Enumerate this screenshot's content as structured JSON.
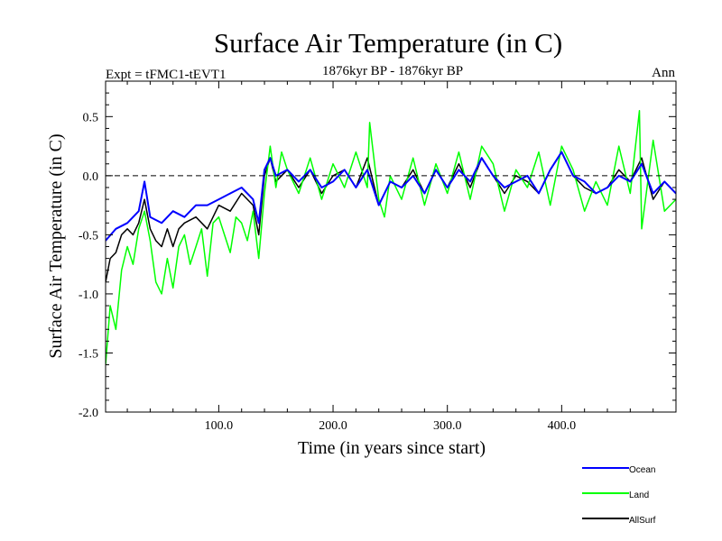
{
  "chart_data": {
    "type": "line",
    "title": "Surface Air Temperature (in C)",
    "subtitle": "1876kyr BP - 1876kyr BP",
    "left_label": "Expt = tFMC1-tEVT1",
    "right_label": "Ann",
    "xlabel": "Time (in years since start)",
    "ylabel": "Surface Air Temperature (in C)",
    "xlim": [
      1,
      500
    ],
    "ylim": [
      -2.0,
      0.8
    ],
    "x_ticks": [
      100,
      200,
      300,
      400
    ],
    "x_tick_labels": [
      "100.0",
      "200.0",
      "300.0",
      "400.0"
    ],
    "y_ticks": [
      -2.0,
      -1.5,
      -1.0,
      -0.5,
      0.0,
      0.5
    ],
    "y_tick_labels": [
      "-2.0",
      "-1.5",
      "-1.0",
      "-0.5",
      "0.0",
      "0.5"
    ],
    "reference_line": 0.0,
    "grid": false,
    "legend_position": "bottom-right",
    "series": [
      {
        "name": "Ocean",
        "color": "#0000ff",
        "x": [
          1,
          10,
          20,
          30,
          35,
          40,
          50,
          60,
          70,
          80,
          90,
          100,
          110,
          120,
          130,
          135,
          140,
          145,
          150,
          160,
          170,
          180,
          190,
          200,
          210,
          220,
          230,
          240,
          250,
          260,
          270,
          280,
          290,
          300,
          310,
          320,
          330,
          340,
          350,
          360,
          370,
          380,
          390,
          400,
          410,
          420,
          430,
          440,
          450,
          460,
          470,
          480,
          490,
          500
        ],
        "values": [
          -0.55,
          -0.45,
          -0.4,
          -0.3,
          -0.05,
          -0.35,
          -0.4,
          -0.3,
          -0.35,
          -0.25,
          -0.25,
          -0.2,
          -0.15,
          -0.1,
          -0.2,
          -0.4,
          0.05,
          0.15,
          0.0,
          0.05,
          -0.05,
          0.05,
          -0.1,
          -0.05,
          0.05,
          -0.1,
          0.05,
          -0.25,
          -0.05,
          -0.1,
          0.0,
          -0.15,
          0.05,
          -0.1,
          0.05,
          -0.05,
          0.15,
          0.0,
          -0.1,
          -0.05,
          0.0,
          -0.15,
          0.05,
          0.2,
          0.0,
          -0.05,
          -0.15,
          -0.1,
          0.0,
          -0.05,
          0.1,
          -0.15,
          -0.05,
          -0.15
        ]
      },
      {
        "name": "Land",
        "color": "#00ff00",
        "x": [
          1,
          5,
          10,
          15,
          20,
          25,
          30,
          35,
          40,
          45,
          50,
          55,
          60,
          65,
          70,
          75,
          80,
          85,
          90,
          95,
          100,
          105,
          110,
          115,
          120,
          125,
          130,
          135,
          140,
          145,
          150,
          155,
          160,
          170,
          180,
          190,
          200,
          210,
          220,
          230,
          232,
          240,
          245,
          250,
          260,
          270,
          280,
          290,
          300,
          310,
          320,
          330,
          340,
          350,
          360,
          370,
          380,
          390,
          400,
          410,
          420,
          430,
          440,
          450,
          460,
          468,
          470,
          480,
          490,
          500
        ],
        "values": [
          -1.6,
          -1.1,
          -1.3,
          -0.8,
          -0.6,
          -0.75,
          -0.45,
          -0.3,
          -0.55,
          -0.9,
          -1.0,
          -0.7,
          -0.95,
          -0.6,
          -0.5,
          -0.75,
          -0.6,
          -0.45,
          -0.85,
          -0.4,
          -0.35,
          -0.5,
          -0.65,
          -0.35,
          -0.4,
          -0.55,
          -0.3,
          -0.7,
          -0.15,
          0.25,
          -0.1,
          0.2,
          0.05,
          -0.15,
          0.15,
          -0.2,
          0.1,
          -0.1,
          0.2,
          -0.1,
          0.45,
          -0.2,
          -0.35,
          0.0,
          -0.2,
          0.15,
          -0.25,
          0.1,
          -0.15,
          0.2,
          -0.2,
          0.25,
          0.1,
          -0.3,
          0.05,
          -0.1,
          0.2,
          -0.25,
          0.25,
          0.05,
          -0.3,
          -0.05,
          -0.25,
          0.25,
          -0.15,
          0.55,
          -0.45,
          0.3,
          -0.3,
          -0.2
        ]
      },
      {
        "name": "AllSurf",
        "color": "#000000",
        "x": [
          1,
          5,
          10,
          15,
          20,
          25,
          30,
          35,
          40,
          45,
          50,
          55,
          60,
          65,
          70,
          80,
          90,
          100,
          110,
          120,
          130,
          135,
          140,
          145,
          150,
          160,
          170,
          180,
          190,
          200,
          210,
          220,
          230,
          240,
          250,
          260,
          270,
          280,
          290,
          300,
          310,
          320,
          330,
          340,
          350,
          360,
          370,
          380,
          390,
          400,
          410,
          420,
          430,
          440,
          450,
          460,
          470,
          480,
          490,
          500
        ],
        "values": [
          -0.9,
          -0.7,
          -0.65,
          -0.5,
          -0.45,
          -0.5,
          -0.4,
          -0.2,
          -0.45,
          -0.55,
          -0.6,
          -0.45,
          -0.6,
          -0.45,
          -0.4,
          -0.35,
          -0.45,
          -0.25,
          -0.3,
          -0.15,
          -0.25,
          -0.5,
          0.0,
          0.15,
          -0.05,
          0.05,
          -0.1,
          0.05,
          -0.15,
          0.0,
          0.05,
          -0.1,
          0.15,
          -0.25,
          -0.05,
          -0.1,
          0.05,
          -0.15,
          0.05,
          -0.1,
          0.1,
          -0.1,
          0.15,
          0.0,
          -0.15,
          0.0,
          -0.05,
          -0.15,
          0.05,
          0.2,
          0.0,
          -0.1,
          -0.15,
          -0.1,
          0.05,
          -0.05,
          0.15,
          -0.2,
          -0.05,
          -0.15
        ]
      }
    ]
  }
}
